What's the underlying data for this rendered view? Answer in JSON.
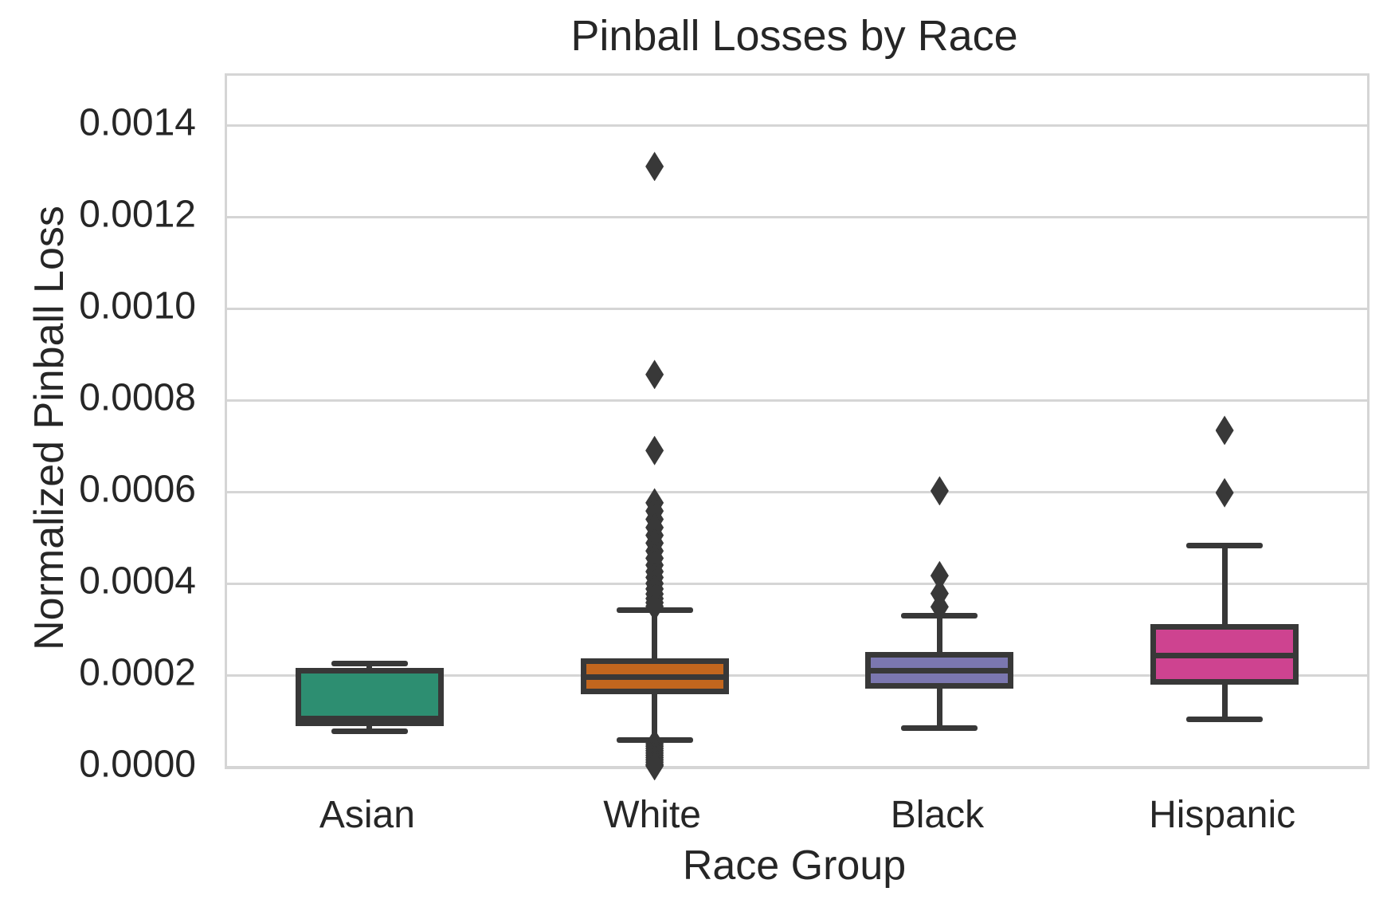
{
  "chart_data": {
    "type": "box",
    "title": "Pinball Losses by Race",
    "xlabel": "Race Group",
    "ylabel": "Normalized Pinball Loss",
    "ylim": [
      0.0,
      0.001508
    ],
    "yticks": [
      0.0,
      0.0002,
      0.0004,
      0.0006,
      0.0008,
      0.001,
      0.0012,
      0.0014
    ],
    "ytick_labels": [
      "0.0000",
      "0.0002",
      "0.0004",
      "0.0006",
      "0.0008",
      "0.0010",
      "0.0012",
      "0.0014"
    ],
    "grid": true,
    "legend": false,
    "categories": [
      "Asian",
      "White",
      "Black",
      "Hispanic"
    ],
    "groups": [
      {
        "label": "Asian",
        "color": "#2d8e71",
        "whisker_low": 7.7e-05,
        "q1": 9.4e-05,
        "median": 0.000106,
        "q3": 0.000209,
        "whisker_high": 0.000226,
        "outliers": []
      },
      {
        "label": "White",
        "color": "#c2661e",
        "whisker_low": 5.9e-05,
        "q1": 0.000165,
        "median": 0.000195,
        "q3": 0.000231,
        "whisker_high": 0.000341,
        "outliers": [
          0.00131,
          0.000856,
          0.00069,
          0.000576,
          0.000558,
          0.00054,
          0.000522,
          0.000505,
          0.000488,
          0.000471,
          0.000455,
          0.00044,
          0.000426,
          0.000413,
          0.0004,
          0.000388,
          0.000377,
          0.000367,
          0.000358,
          0.00035,
          5e-05,
          4.5e-05,
          4e-05,
          3.5e-05,
          3e-05,
          2.5e-05,
          2e-05,
          1.5e-05,
          1e-05,
          5e-06,
          2e-06
        ]
      },
      {
        "label": "Black",
        "color": "#7b77b0",
        "whisker_low": 8.5e-05,
        "q1": 0.000177,
        "median": 0.00021,
        "q3": 0.000245,
        "whisker_high": 0.00033,
        "outliers": [
          0.000602,
          0.000417,
          0.000378,
          0.000349
        ]
      },
      {
        "label": "Hispanic",
        "color": "#ce4390",
        "whisker_low": 0.000103,
        "q1": 0.000186,
        "median": 0.000242,
        "q3": 0.000306,
        "whisker_high": 0.000482,
        "outliers": [
          0.000734,
          0.000598
        ]
      }
    ],
    "style": {
      "line_color": "#383838",
      "grid_color": "#d5d5d5",
      "text_color": "#262626",
      "background": "#ffffff"
    }
  }
}
